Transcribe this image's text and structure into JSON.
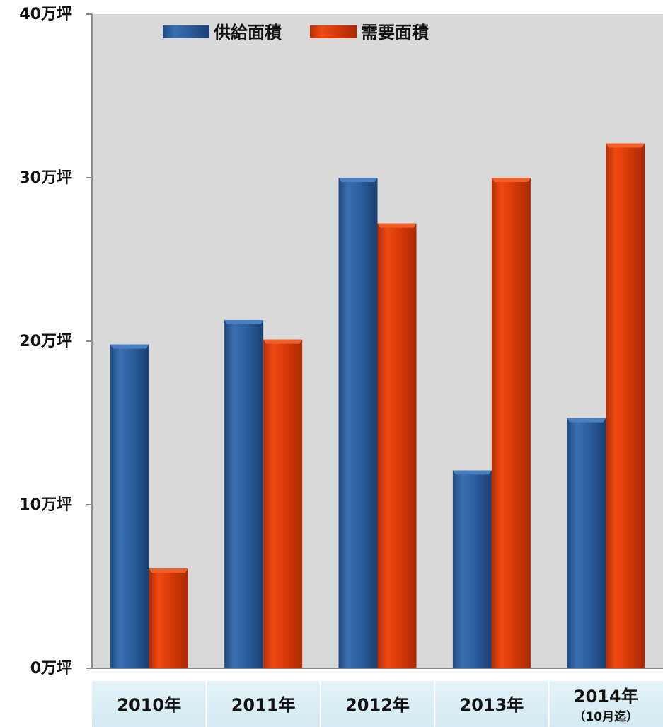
{
  "chart_data": {
    "type": "bar",
    "categories": [
      "2010年",
      "2011年",
      "2012年",
      "2013年",
      "2014年"
    ],
    "category_notes": [
      "",
      "",
      "",
      "",
      "（10月迄）"
    ],
    "series": [
      {
        "name": "供給面積",
        "values": [
          19.8,
          21.3,
          30.0,
          12.1,
          15.3
        ],
        "color": "#2d5f9e"
      },
      {
        "name": "需要面積",
        "values": [
          6.1,
          20.1,
          27.2,
          30.0,
          32.1
        ],
        "color": "#d93a07"
      }
    ],
    "ylim": [
      0,
      40
    ],
    "yticks": [
      0,
      10,
      20,
      30,
      40
    ],
    "ytick_labels": [
      "0万坪",
      "10万坪",
      "20万坪",
      "30万坪",
      "40万坪"
    ],
    "title": "",
    "xlabel": "",
    "ylabel": "",
    "grid": false,
    "legend_position": "top-left",
    "plot_background": "#d9d9d9",
    "category_band_color": "#dbeef4"
  }
}
